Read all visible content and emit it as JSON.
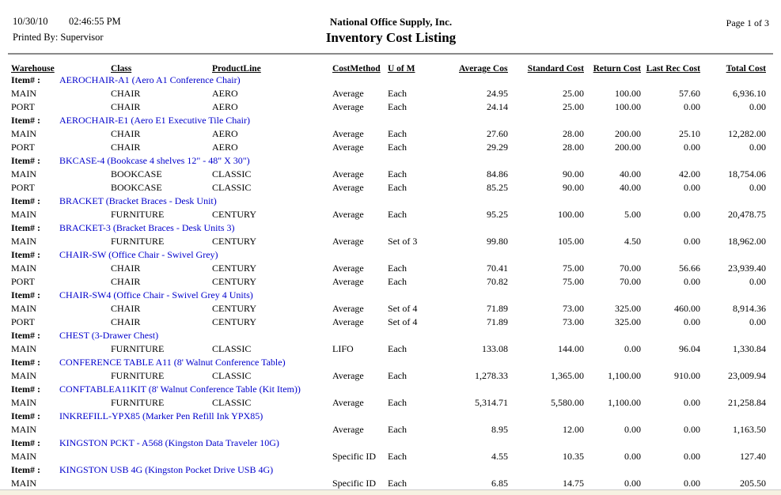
{
  "report_header": {
    "date": "10/30/10",
    "time": "02:46:55 PM",
    "printed_by": "Printed By: Supervisor",
    "company": "National Office Supply, Inc.",
    "title": "Inventory Cost Listing",
    "page": "Page 1 of 3"
  },
  "colors": {
    "item_link_blue": "#0000CC",
    "rule_gray": "#8a8a8a",
    "bottom_strip": "#f6f2e2"
  },
  "table": {
    "item_label": "Item# :",
    "columns": [
      "Warehouse",
      "Class",
      "ProductLine",
      "CostMethod",
      "U of M",
      "Average Cost",
      "Standard Cost",
      "Return Cost",
      "Last Rec Cost",
      "Total Cost"
    ],
    "groups": [
      {
        "item": "AEROCHAIR-A1 (Aero A1 Conference Chair)",
        "rows": [
          [
            "MAIN",
            "CHAIR",
            "AERO",
            "Average",
            "Each",
            "24.95",
            "25.00",
            "100.00",
            "57.60",
            "6,936.10"
          ],
          [
            "PORT",
            "CHAIR",
            "AERO",
            "Average",
            "Each",
            "24.14",
            "25.00",
            "100.00",
            "0.00",
            "0.00"
          ]
        ]
      },
      {
        "item": "AEROCHAIR-E1 (Aero E1 Executive Tile Chair)",
        "rows": [
          [
            "MAIN",
            "CHAIR",
            "AERO",
            "Average",
            "Each",
            "27.60",
            "28.00",
            "200.00",
            "25.10",
            "12,282.00"
          ],
          [
            "PORT",
            "CHAIR",
            "AERO",
            "Average",
            "Each",
            "29.29",
            "28.00",
            "200.00",
            "0.00",
            "0.00"
          ]
        ]
      },
      {
        "item": "BKCASE-4 (Bookcase 4 shelves 12\" - 48\" X 30\")",
        "rows": [
          [
            "MAIN",
            "BOOKCASE",
            "CLASSIC",
            "Average",
            "Each",
            "84.86",
            "90.00",
            "40.00",
            "42.00",
            "18,754.06"
          ],
          [
            "PORT",
            "BOOKCASE",
            "CLASSIC",
            "Average",
            "Each",
            "85.25",
            "90.00",
            "40.00",
            "0.00",
            "0.00"
          ]
        ]
      },
      {
        "item": "BRACKET (Bracket Braces - Desk Unit)",
        "rows": [
          [
            "MAIN",
            "FURNITURE",
            "CENTURY",
            "Average",
            "Each",
            "95.25",
            "100.00",
            "5.00",
            "0.00",
            "20,478.75"
          ]
        ]
      },
      {
        "item": "BRACKET-3 (Bracket Braces - Desk Units 3)",
        "rows": [
          [
            "MAIN",
            "FURNITURE",
            "CENTURY",
            "Average",
            "Set of 3",
            "99.80",
            "105.00",
            "4.50",
            "0.00",
            "18,962.00"
          ]
        ]
      },
      {
        "item": "CHAIR-SW (Office Chair - Swivel Grey)",
        "rows": [
          [
            "MAIN",
            "CHAIR",
            "CENTURY",
            "Average",
            "Each",
            "70.41",
            "75.00",
            "70.00",
            "56.66",
            "23,939.40"
          ],
          [
            "PORT",
            "CHAIR",
            "CENTURY",
            "Average",
            "Each",
            "70.82",
            "75.00",
            "70.00",
            "0.00",
            "0.00"
          ]
        ]
      },
      {
        "item": "CHAIR-SW4 (Office Chair - Swivel Grey 4 Units)",
        "rows": [
          [
            "MAIN",
            "CHAIR",
            "CENTURY",
            "Average",
            "Set of 4",
            "71.89",
            "73.00",
            "325.00",
            "460.00",
            "8,914.36"
          ],
          [
            "PORT",
            "CHAIR",
            "CENTURY",
            "Average",
            "Set of 4",
            "71.89",
            "73.00",
            "325.00",
            "0.00",
            "0.00"
          ]
        ]
      },
      {
        "item": "CHEST (3-Drawer Chest)",
        "rows": [
          [
            "MAIN",
            "FURNITURE",
            "CLASSIC",
            "LIFO",
            "Each",
            "133.08",
            "144.00",
            "0.00",
            "96.04",
            "1,330.84"
          ]
        ]
      },
      {
        "item": "CONFERENCE TABLE A11 (8' Walnut Conference Table)",
        "rows": [
          [
            "MAIN",
            "FURNITURE",
            "CLASSIC",
            "Average",
            "Each",
            "1,278.33",
            "1,365.00",
            "1,100.00",
            "910.00",
            "23,009.94"
          ]
        ]
      },
      {
        "item": "CONFTABLEA11KIT (8' Walnut Conference Table (Kit Item))",
        "rows": [
          [
            "MAIN",
            "FURNITURE",
            "CLASSIC",
            "Average",
            "Each",
            "5,314.71",
            "5,580.00",
            "1,100.00",
            "0.00",
            "21,258.84"
          ]
        ]
      },
      {
        "item": "INKREFILL-YPX85 (Marker Pen Refill Ink YPX85)",
        "rows": [
          [
            "MAIN",
            "",
            "",
            "Average",
            "Each",
            "8.95",
            "12.00",
            "0.00",
            "0.00",
            "1,163.50"
          ]
        ]
      },
      {
        "item": "KINGSTON PCKT - A568 (Kingston Data Traveler 10G)",
        "rows": [
          [
            "MAIN",
            "",
            "",
            "Specific ID",
            "Each",
            "4.55",
            "10.35",
            "0.00",
            "0.00",
            "127.40"
          ]
        ]
      },
      {
        "item": "KINGSTON USB 4G (Kingston Pocket Drive USB 4G)",
        "rows": [
          [
            "MAIN",
            "",
            "",
            "Specific ID",
            "Each",
            "6.85",
            "14.75",
            "0.00",
            "0.00",
            "205.50"
          ]
        ]
      }
    ]
  }
}
